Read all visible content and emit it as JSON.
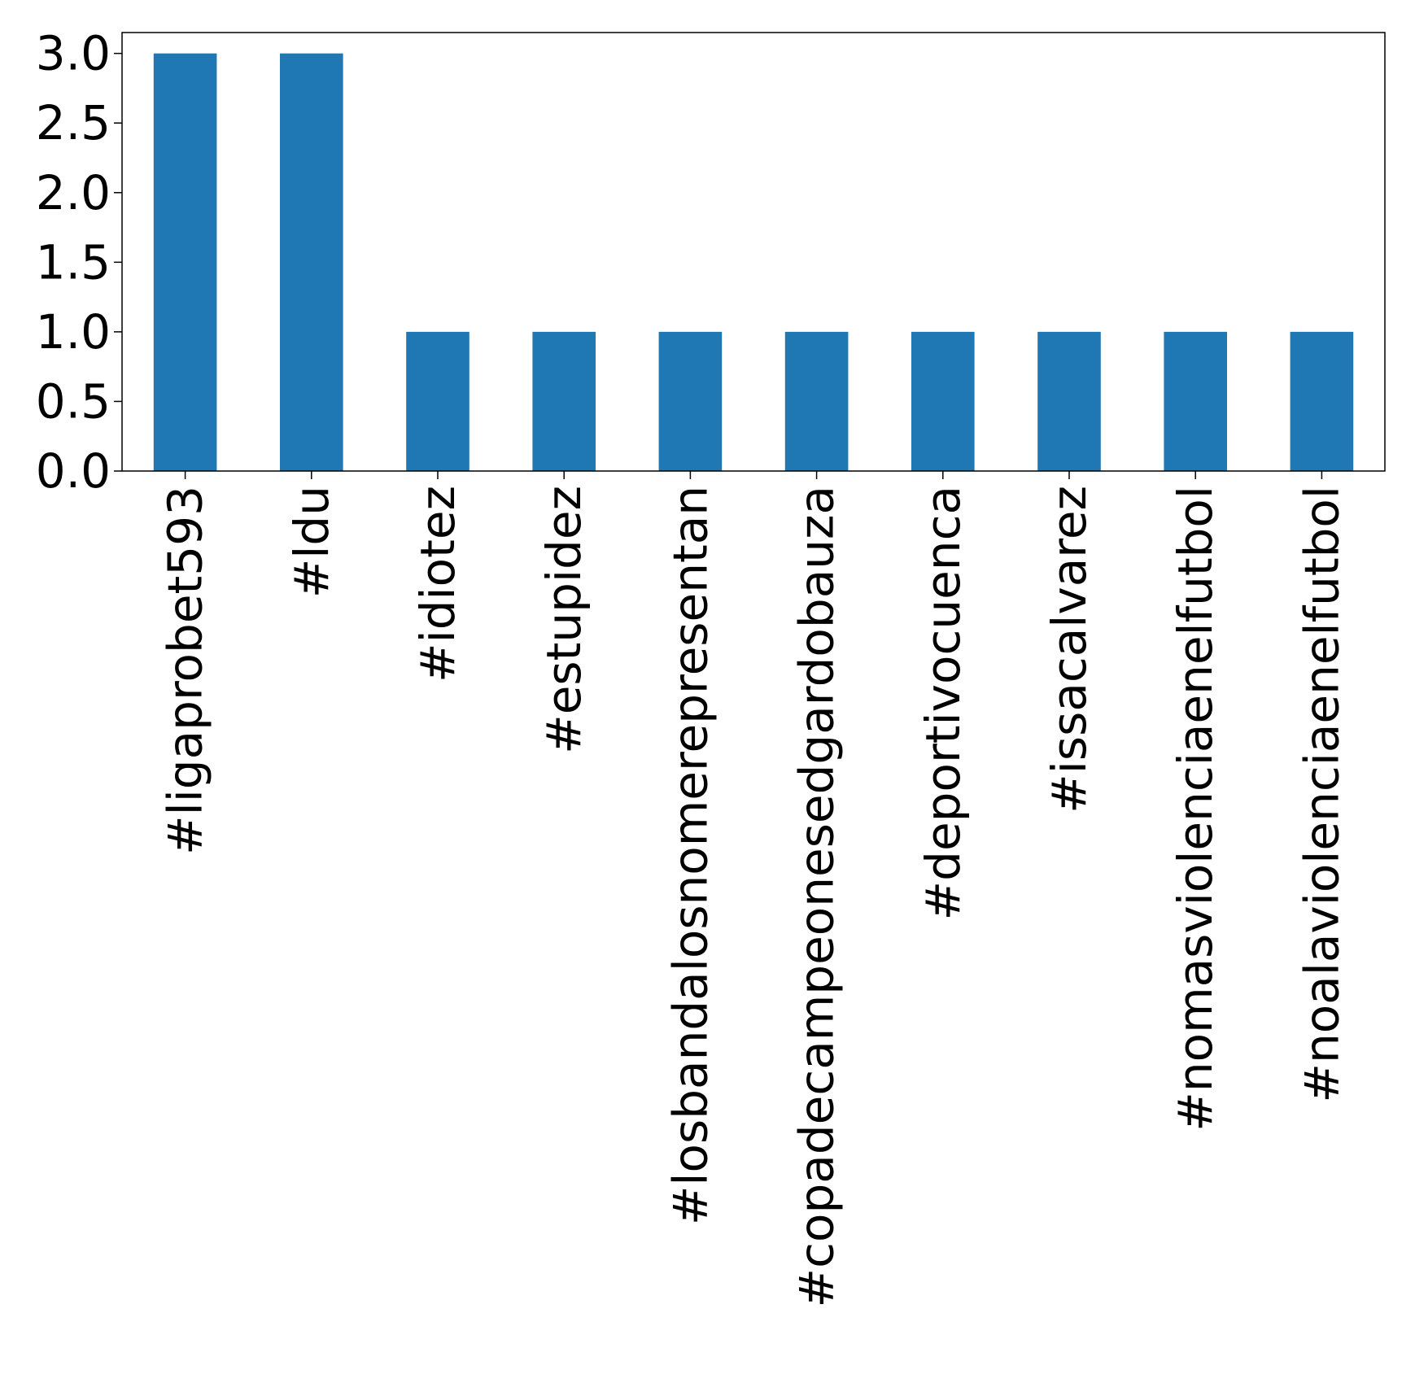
{
  "chart_data": {
    "type": "bar",
    "categories": [
      "#ligaprobet593",
      "#ldu",
      "#idiotez",
      "#estupidez",
      "#losbandalosnomerepresentan",
      "#copadecampeonesedgardobauza",
      "#deportivocuenca",
      "#issacalvarez",
      "#nomasviolenciaenelfutbol",
      "#noalaviolenciaenelfutbol"
    ],
    "values": [
      3,
      3,
      1,
      1,
      1,
      1,
      1,
      1,
      1,
      1
    ],
    "yticks": [
      "0.0",
      "0.5",
      "1.0",
      "1.5",
      "2.0",
      "2.5",
      "3.0"
    ],
    "ylim": [
      0,
      3.15
    ],
    "grid": false,
    "bar_color": "#1f77b4"
  }
}
